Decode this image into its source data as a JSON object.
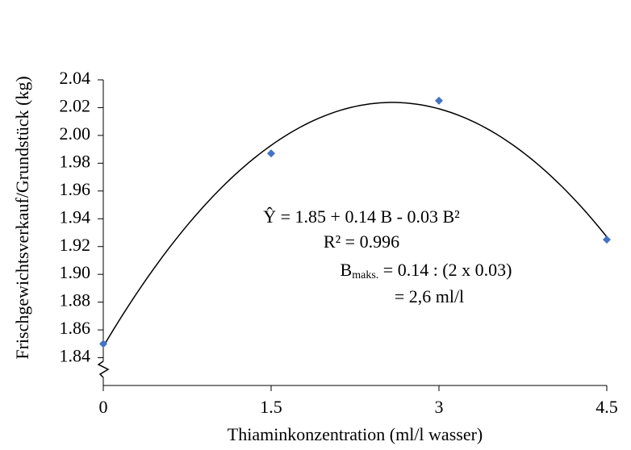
{
  "chart_data": {
    "type": "scatter",
    "y_label": "Frischgewichtsverkauf/Grundstück (kg)",
    "x_label": "Thiaminkonzentration (ml/l wasser)",
    "x": [
      0,
      1.5,
      3,
      4.5
    ],
    "series": [
      {
        "color": "#4472c4",
        "values": [
          1.85,
          1.987,
          2.025,
          1.925
        ]
      }
    ],
    "trendline": "quadratic",
    "trendline_color": "#000000",
    "xlim": [
      0,
      4.5
    ],
    "xticks": [
      0,
      1.5,
      3,
      4.5
    ],
    "ylim": [
      1.82,
      2.04
    ],
    "yticks": [
      1.84,
      1.86,
      1.88,
      {
        "value": 1.9,
        "label": "1.90"
      },
      1.92,
      1.94,
      1.96,
      1.98,
      {
        "value": 2,
        "label": "2.00"
      },
      2.02,
      2.04
    ],
    "annotations": [
      "Ŷ = 1.85 + 0.14 B - 0.03 B²",
      "R² = 0.996",
      [
        "B",
        "maks.",
        " = 0.14 : (2 x 0.03)"
      ],
      "= 2,6 ml/l"
    ]
  }
}
